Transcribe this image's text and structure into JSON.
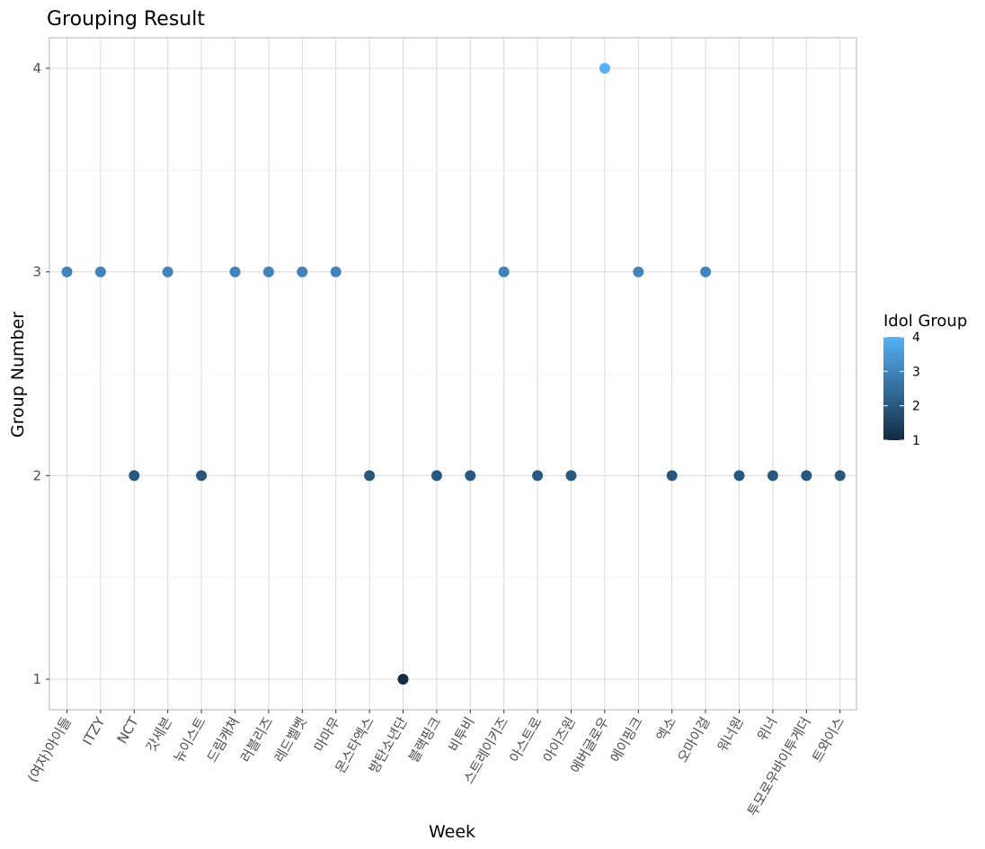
{
  "chart_data": {
    "type": "scatter",
    "title": "Grouping Result",
    "xlabel": "Week",
    "ylabel": "Group Number",
    "categories": [
      "(여자)아이들",
      "ITZY",
      "NCT",
      "갓세븐",
      "뉴이스트",
      "드림캐쳐",
      "러블리즈",
      "레드벨벳",
      "마마무",
      "몬스타엑스",
      "방탄소년단",
      "블랙핑크",
      "비투비",
      "스트레이키즈",
      "아스트로",
      "아이즈원",
      "에버글로우",
      "에이핑크",
      "엑소",
      "오마이걸",
      "워너원",
      "위너",
      "투모로우바이투게더",
      "트와이스"
    ],
    "values": [
      3,
      3,
      2,
      3,
      2,
      3,
      3,
      3,
      3,
      2,
      1,
      2,
      2,
      3,
      2,
      2,
      4,
      3,
      2,
      3,
      2,
      2,
      2,
      2
    ],
    "y_ticks": [
      1,
      2,
      3,
      4
    ],
    "ylim": [
      0.85,
      4.15
    ],
    "grid": true,
    "legend": {
      "title": "Idol Group",
      "position": "right",
      "labels": [
        "4",
        "3",
        "2",
        "1"
      ],
      "values": [
        4,
        3,
        2,
        1
      ]
    },
    "colors": {
      "low": "#132B43",
      "high": "#56B1F7",
      "grid": "#d9d9d9",
      "panel_border": "#b3b3b3"
    }
  }
}
